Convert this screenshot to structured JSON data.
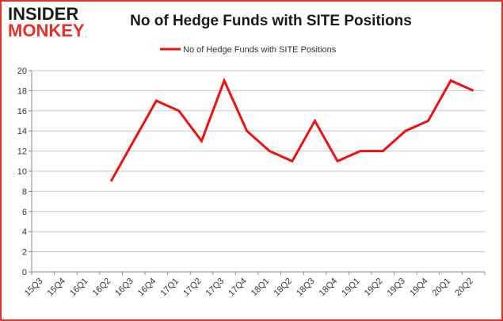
{
  "logo": {
    "line1": "INSIDER",
    "line2": "MONKEY",
    "colors": {
      "line1": "#1a1a1a",
      "line2": "#e4322b"
    }
  },
  "chart_data": {
    "type": "line",
    "title": "No of Hedge Funds with SITE Positions",
    "xlabel": "",
    "ylabel": "",
    "categories": [
      "15Q3",
      "15Q4",
      "16Q1",
      "16Q2",
      "16Q3",
      "16Q4",
      "17Q1",
      "17Q2",
      "17Q3",
      "17Q4",
      "18Q1",
      "18Q2",
      "18Q3",
      "18Q4",
      "19Q1",
      "19Q2",
      "19Q3",
      "19Q4",
      "20Q1",
      "20Q2"
    ],
    "series": [
      {
        "name": "No of Hedge Funds with SITE Positions",
        "color": "#ee1111",
        "values": [
          null,
          null,
          null,
          9,
          13,
          17,
          16,
          13,
          19,
          14,
          12,
          11,
          15,
          11,
          12,
          12,
          14,
          15,
          19,
          18
        ]
      }
    ],
    "ylim": [
      0,
      20
    ],
    "yticks": [
      0,
      2,
      4,
      6,
      8,
      10,
      12,
      14,
      16,
      18,
      20
    ],
    "grid": {
      "horizontal": true,
      "vertical": false,
      "color": "#c8c8c8"
    },
    "legend": "top-center",
    "border_color": "#e4322b"
  }
}
